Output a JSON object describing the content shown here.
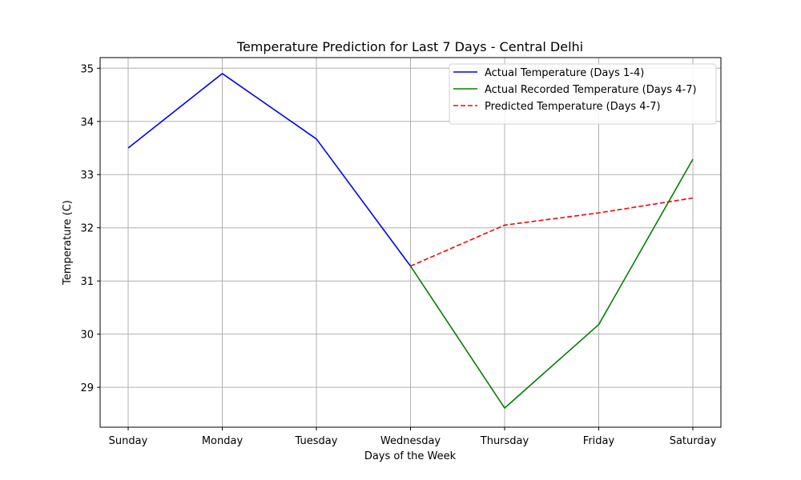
{
  "chart_data": {
    "type": "line",
    "title": "Temperature Prediction for Last 7 Days - Central Delhi",
    "xlabel": "Days of the Week",
    "ylabel": "Temperature (C)",
    "categories": [
      "Sunday",
      "Monday",
      "Tuesday",
      "Wednesday",
      "Thursday",
      "Friday",
      "Saturday"
    ],
    "ylim": [
      28.25,
      35.2
    ],
    "yticks": [
      29,
      30,
      31,
      32,
      33,
      34,
      35
    ],
    "grid": true,
    "legend_position": "top-right",
    "series": [
      {
        "name": "Actual Temperature (Days 1-4)",
        "color": "#0000ff",
        "dash": "solid",
        "x": [
          "Sunday",
          "Monday",
          "Tuesday",
          "Wednesday"
        ],
        "values": [
          33.5,
          34.9,
          33.67,
          31.28
        ]
      },
      {
        "name": "Actual Recorded Temperature (Days 4-7)",
        "color": "#008000",
        "dash": "solid",
        "x": [
          "Wednesday",
          "Thursday",
          "Friday",
          "Saturday"
        ],
        "values": [
          31.28,
          28.61,
          30.18,
          33.29
        ]
      },
      {
        "name": "Predicted Temperature (Days 4-7)",
        "color": "#ff0000",
        "dash": "dashed",
        "x": [
          "Wednesday",
          "Thursday",
          "Friday",
          "Saturday"
        ],
        "values": [
          31.28,
          32.05,
          32.28,
          32.56
        ]
      }
    ]
  }
}
